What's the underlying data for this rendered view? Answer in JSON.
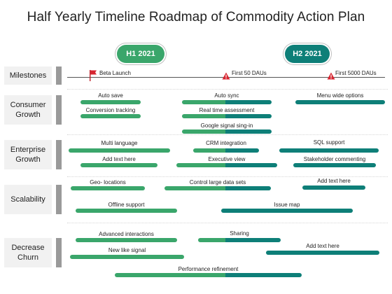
{
  "title": "Half Yearly Timeline Roadmap of Commodity Action Plan",
  "colors": {
    "green": "#3aa66b",
    "teal": "#0e7f78",
    "label_bg": "#f1f1f1",
    "grip": "#9a9a9a"
  },
  "periods": [
    {
      "label": "H1 2021",
      "color": "#3aa66b"
    },
    {
      "label": "H2 2021",
      "color": "#0e7f78"
    }
  ],
  "milestones": {
    "label": "Milestones",
    "items": [
      {
        "text": "Beta Launch",
        "icon": "flag-icon"
      },
      {
        "text": "First  50 DAUs",
        "icon": "warning-icon"
      },
      {
        "text": "First  5000 DAUs",
        "icon": "warning-icon"
      }
    ]
  },
  "rows": [
    {
      "label": "Consumer Growth",
      "tasks": [
        {
          "text": "Auto save",
          "color": "green"
        },
        {
          "text": "Auto sync",
          "color": "mixed"
        },
        {
          "text": "Menu wide options",
          "color": "teal"
        },
        {
          "text": "Conversion tracking",
          "color": "green"
        },
        {
          "text": "Real time assessment",
          "color": "mixed"
        },
        {
          "text": "Google signal sing-in",
          "color": "mixed"
        }
      ]
    },
    {
      "label": "Enterprise Growth",
      "tasks": [
        {
          "text": "Multi language",
          "color": "green"
        },
        {
          "text": "CRM integration",
          "color": "mixed"
        },
        {
          "text": "SQL support",
          "color": "teal"
        },
        {
          "text": "Add text here",
          "color": "green"
        },
        {
          "text": "Executive view",
          "color": "mixed"
        },
        {
          "text": "Stakeholder commenting",
          "color": "teal"
        }
      ]
    },
    {
      "label": "Scalability",
      "tasks": [
        {
          "text": "Geo- locations",
          "color": "green"
        },
        {
          "text": "Control large data sets",
          "color": "mixed"
        },
        {
          "text": "Add text here",
          "color": "teal"
        },
        {
          "text": "Offline support",
          "color": "green"
        },
        {
          "text": "Issue map",
          "color": "teal"
        }
      ]
    },
    {
      "label": "Decrease Churn",
      "tasks": [
        {
          "text": "Advanced interactions",
          "color": "green"
        },
        {
          "text": "Sharing",
          "color": "mixed"
        },
        {
          "text": "New like signal",
          "color": "green"
        },
        {
          "text": "Add text here",
          "color": "teal"
        },
        {
          "text": "Performance refinement",
          "color": "mixed"
        }
      ]
    }
  ]
}
